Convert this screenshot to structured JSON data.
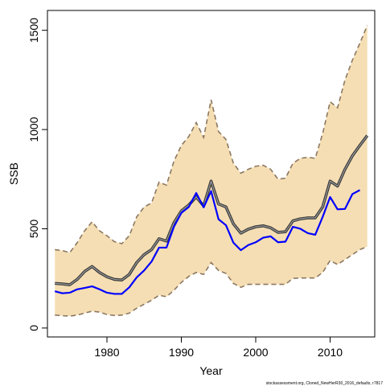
{
  "chart_data": {
    "type": "line",
    "xlabel": "Year",
    "ylabel": "SSB",
    "xlim": [
      1972,
      2016
    ],
    "ylim": [
      -45,
      1600
    ],
    "x_ticks": [
      1980,
      1990,
      2000,
      2010
    ],
    "y_ticks": [
      0,
      500,
      1000,
      1500
    ],
    "grid": false,
    "legend": "none",
    "credit": "stockassessment.org, Cloned_NewHerR30_2016_defaults, r7817",
    "colors": {
      "band_fill": "#f5deb3",
      "band_edge": "#8c7862",
      "estimate": "#3b3b3b",
      "estimate_halo": "#9a9a9a",
      "observed": "#0000ff"
    },
    "years": [
      1973,
      1974,
      1975,
      1976,
      1977,
      1978,
      1979,
      1980,
      1981,
      1982,
      1983,
      1984,
      1985,
      1986,
      1987,
      1988,
      1989,
      1990,
      1991,
      1992,
      1993,
      1994,
      1995,
      1996,
      1997,
      1998,
      1999,
      2000,
      2001,
      2002,
      2003,
      2004,
      2005,
      2006,
      2007,
      2008,
      2009,
      2010,
      2011,
      2012,
      2013,
      2014,
      2015
    ],
    "series": [
      {
        "key": "upper",
        "values": [
          395,
          390,
          380,
          430,
          490,
          535,
          490,
          465,
          435,
          425,
          465,
          560,
          610,
          630,
          735,
          720,
          840,
          920,
          965,
          1035,
          960,
          1150,
          990,
          950,
          830,
          780,
          800,
          815,
          820,
          800,
          750,
          755,
          830,
          855,
          860,
          855,
          980,
          1140,
          1110,
          1250,
          1350,
          1435,
          1525
        ]
      },
      {
        "key": "estimate",
        "values": [
          225,
          222,
          218,
          245,
          285,
          310,
          280,
          258,
          245,
          242,
          270,
          330,
          370,
          395,
          450,
          438,
          530,
          590,
          620,
          660,
          615,
          740,
          625,
          610,
          525,
          478,
          498,
          510,
          515,
          505,
          482,
          485,
          540,
          550,
          555,
          555,
          610,
          740,
          715,
          800,
          868,
          920,
          970
        ]
      },
      {
        "key": "lower",
        "values": [
          65,
          62,
          60,
          65,
          75,
          85,
          80,
          68,
          63,
          65,
          75,
          100,
          120,
          140,
          165,
          158,
          190,
          230,
          260,
          280,
          270,
          330,
          290,
          275,
          225,
          205,
          220,
          220,
          220,
          220,
          220,
          220,
          250,
          252,
          252,
          252,
          280,
          340,
          320,
          345,
          370,
          395,
          410
        ]
      },
      {
        "key": "observed",
        "years": [
          1973,
          1974,
          1975,
          1976,
          1977,
          1978,
          1979,
          1980,
          1981,
          1982,
          1983,
          1984,
          1985,
          1986,
          1987,
          1988,
          1989,
          1990,
          1991,
          1992,
          1993,
          1994,
          1995,
          1996,
          1997,
          1998,
          1999,
          2000,
          2001,
          2002,
          2003,
          2004,
          2005,
          2006,
          2007,
          2008,
          2009,
          2010,
          2011,
          2012,
          2013,
          2014
        ],
        "values": [
          185,
          175,
          178,
          195,
          202,
          210,
          195,
          178,
          172,
          172,
          205,
          255,
          290,
          335,
          405,
          405,
          510,
          580,
          610,
          680,
          608,
          690,
          548,
          518,
          430,
          392,
          418,
          432,
          455,
          462,
          432,
          435,
          510,
          500,
          478,
          470,
          560,
          660,
          598,
          600,
          675,
          695
        ]
      }
    ]
  }
}
